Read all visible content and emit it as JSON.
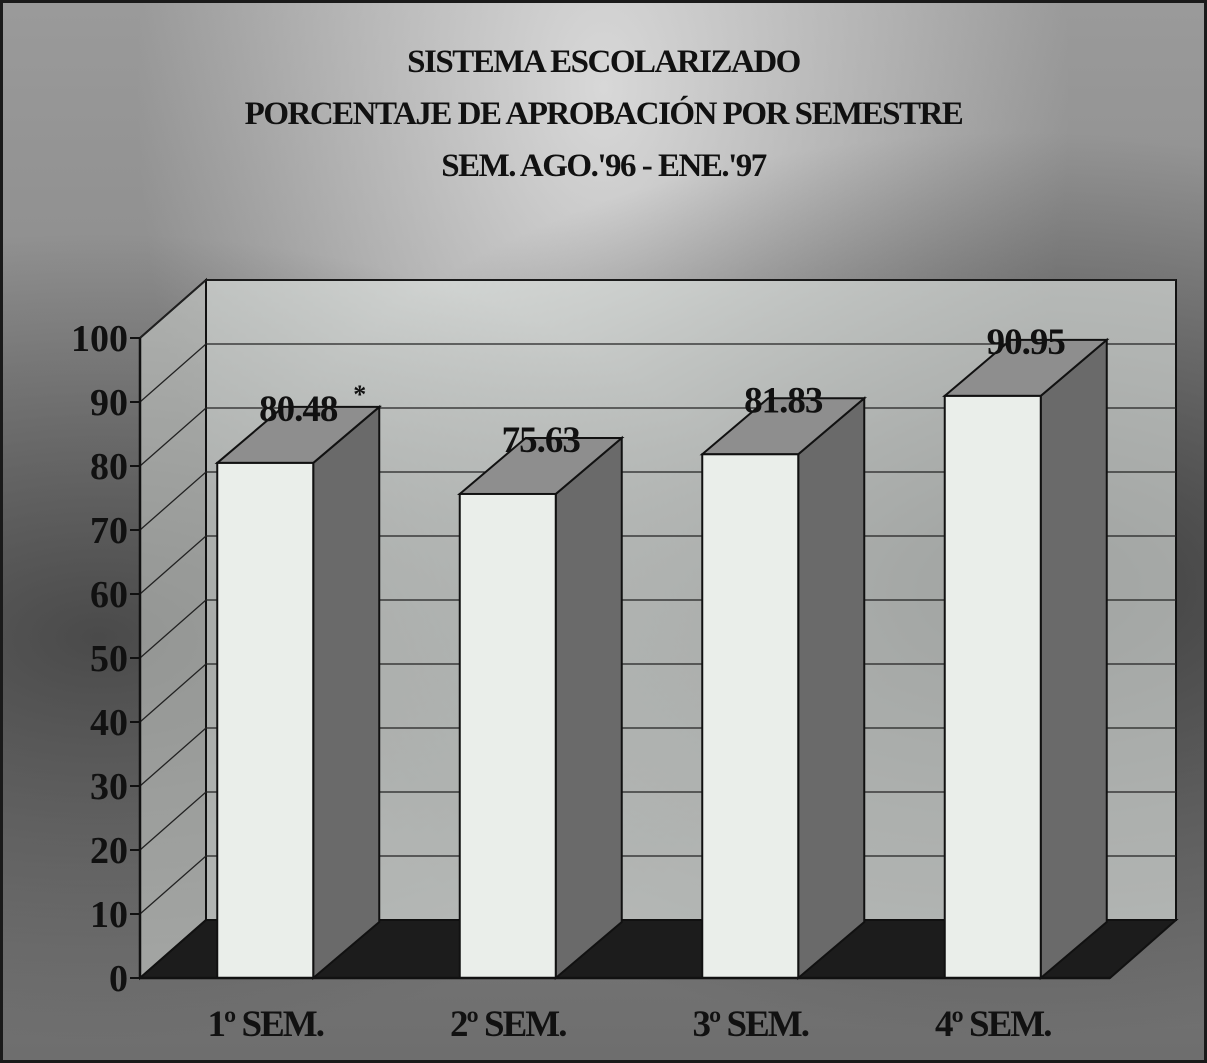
{
  "chart_data": {
    "type": "bar",
    "title": "SISTEMA ESCOLARIZADO",
    "subtitle": "PORCENTAJE DE APROBACIÓN POR SEMESTRE",
    "period": "SEM. AGO.'96 - ENE.'97",
    "categories": [
      "1º SEM.",
      "2º SEM.",
      "3º SEM.",
      "4º SEM."
    ],
    "values": [
      80.48,
      75.63,
      81.83,
      90.95
    ],
    "data_labels": [
      "80.48",
      "75.63",
      "81.83",
      "90.95"
    ],
    "data_label_marks": [
      "*",
      "",
      "",
      ""
    ],
    "ylim": [
      0,
      100
    ],
    "yticks": [
      "0",
      "10",
      "20",
      "30",
      "40",
      "50",
      "60",
      "70",
      "80",
      "90",
      "100"
    ],
    "grid": true,
    "style": "3d-bar"
  },
  "colors": {
    "bar_front": "#eaeeea",
    "bar_side": "#6a6a6a",
    "bar_top": "#8e8e8e",
    "back_wall": "#dfe4e0",
    "floor": "#1c1c1c"
  }
}
